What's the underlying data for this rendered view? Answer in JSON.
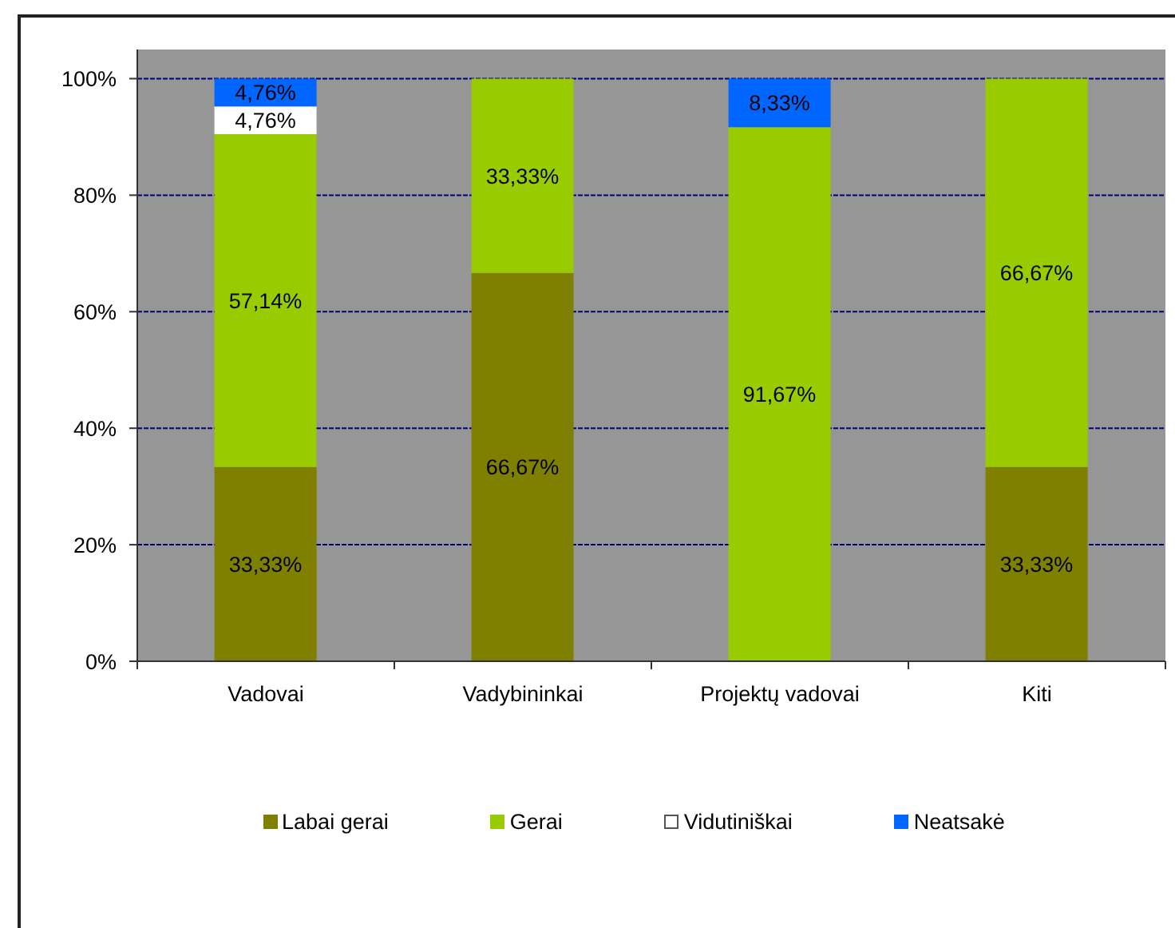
{
  "chart_data": {
    "type": "bar",
    "categories": [
      "Vadovai",
      "Vadybininkai",
      "Projektų vadovai",
      "Kiti"
    ],
    "series": [
      {
        "name": "Labai gerai",
        "color": "#808000",
        "values": [
          33.33,
          66.67,
          null,
          33.33
        ],
        "value_labels": [
          "33,33%",
          "66,67%",
          null,
          "33,33%"
        ]
      },
      {
        "name": "Gerai",
        "color": "#99cc00",
        "values": [
          57.14,
          33.33,
          91.67,
          66.67
        ],
        "value_labels": [
          "57,14%",
          "33,33%",
          "91,67%",
          "66,67%"
        ]
      },
      {
        "name": "Vidutiniškai",
        "color": "#ffffff",
        "values": [
          4.76,
          null,
          null,
          null
        ],
        "value_labels": [
          "4,76%",
          null,
          null,
          null
        ]
      },
      {
        "name": "Neatsakė",
        "color": "#0066ff",
        "values": [
          4.76,
          null,
          8.33,
          null
        ],
        "value_labels": [
          "4,76%",
          null,
          "8,33%",
          null
        ]
      }
    ],
    "stacked": true,
    "ylim": [
      0,
      105
    ],
    "yticks": [
      {
        "value": 0,
        "label": "0%"
      },
      {
        "value": 20,
        "label": "20%"
      },
      {
        "value": 40,
        "label": "40%"
      },
      {
        "value": 60,
        "label": "60%"
      },
      {
        "value": 80,
        "label": "80%"
      },
      {
        "value": 100,
        "label": "100%"
      }
    ],
    "grid": "y",
    "legend": "bottom"
  }
}
